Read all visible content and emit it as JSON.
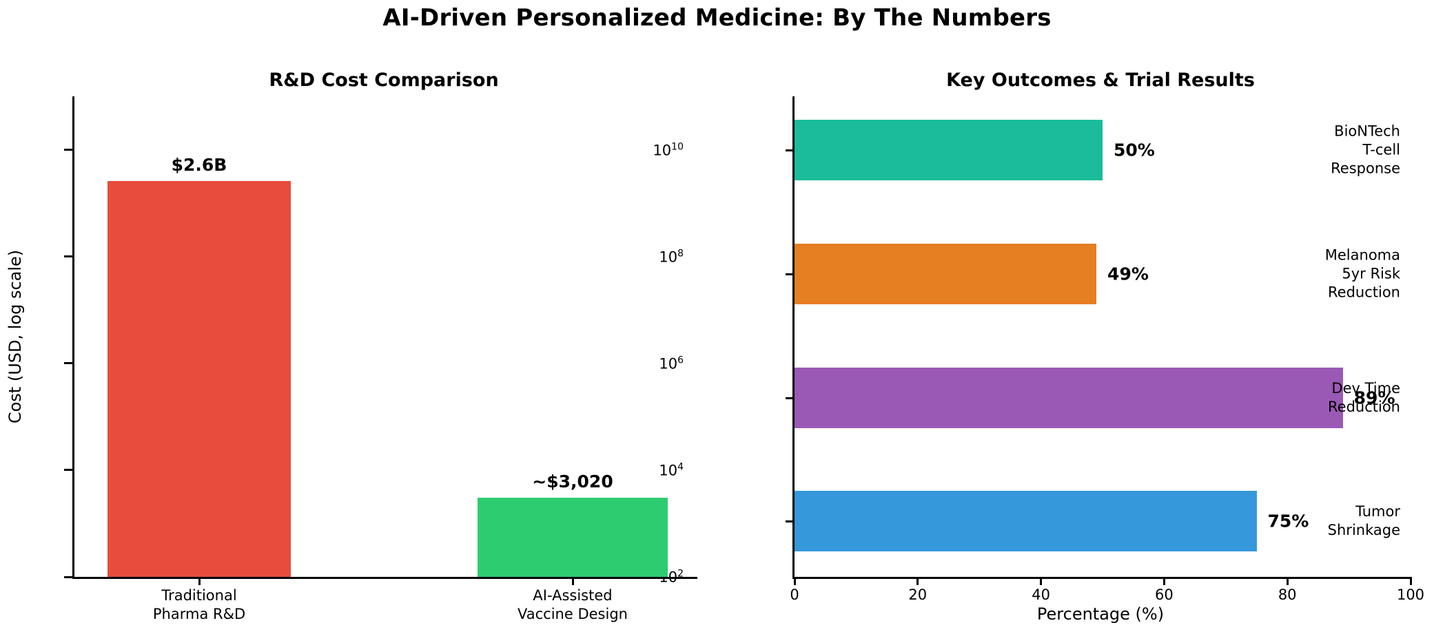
{
  "figure": {
    "title": "AI-Driven Personalized Medicine: By The Numbers",
    "background": "#ffffff",
    "text_color": "#000000"
  },
  "chart_data": [
    {
      "type": "bar",
      "title": "R&D Cost Comparison",
      "ylabel": "Cost (USD, log scale)",
      "yscale": "log",
      "ylim": [
        100,
        100000000000
      ],
      "ytick_exponents": [
        10,
        8,
        6,
        4,
        2
      ],
      "categories": [
        "Traditional\nPharma R&D",
        "AI-Assisted\nVaccine Design"
      ],
      "values": [
        2600000000,
        3020
      ],
      "value_labels": [
        "$2.6B",
        "~$3,020"
      ],
      "bar_colors": [
        "#e74c3c",
        "#2ecc71"
      ],
      "grid": false,
      "legend": "none"
    },
    {
      "type": "barh",
      "title": "Key Outcomes & Trial Results",
      "xlabel": "Percentage (%)",
      "xlim": [
        0,
        100
      ],
      "xticks": [
        0,
        20,
        40,
        60,
        80,
        100
      ],
      "categories": [
        "BioNTech\nT-cell\nResponse",
        "Melanoma\n5yr Risk\nReduction",
        "Dev Time\nReduction",
        "Tumor\nShrinkage"
      ],
      "values": [
        50,
        49,
        89,
        75
      ],
      "value_labels": [
        "50%",
        "49%",
        "89%",
        "75%"
      ],
      "bar_colors": [
        "#1abc9c",
        "#e67e22",
        "#9b59b6",
        "#3498db"
      ],
      "grid": false,
      "legend": "none"
    }
  ]
}
